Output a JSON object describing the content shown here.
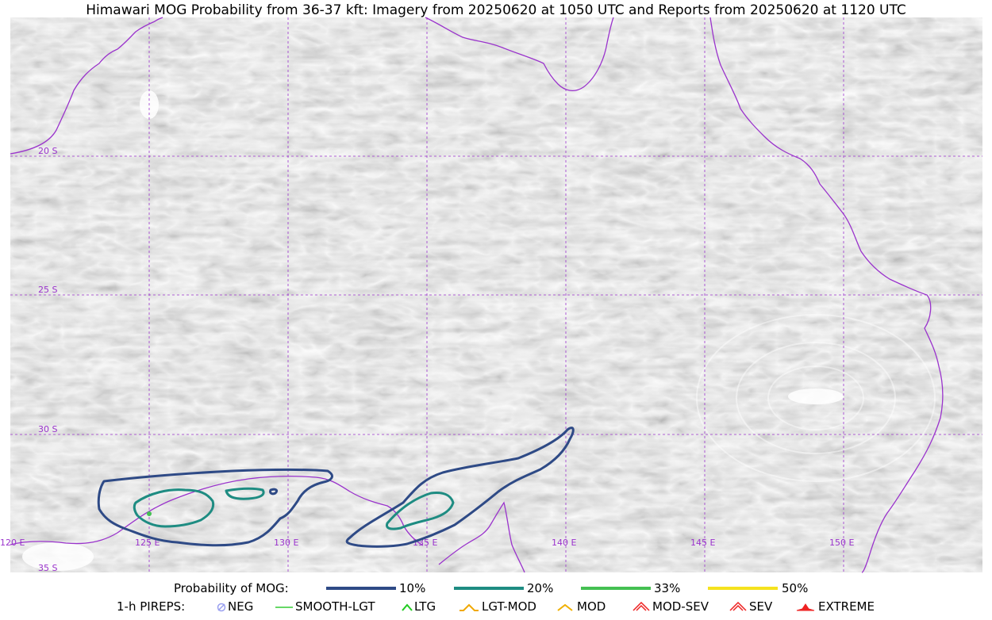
{
  "title": "Himawari MOG Probability from 36-37 kft: Imagery from 20250620 at 1050 UTC and Reports from 20250620 at 1120 UTC",
  "map": {
    "lat_labels": [
      "20 S",
      "25 S",
      "30 S",
      "35 S"
    ],
    "lon_labels": [
      "120 E",
      "125 E",
      "130 E",
      "135 E",
      "140 E",
      "145 E",
      "150 E"
    ],
    "colors": {
      "graticule": "#9a33cc",
      "coastline": "#9a33cc",
      "p10": "#2e4a86",
      "p20": "#1e8c82",
      "p33": "#44c052",
      "p50": "#f5e21e",
      "imagery": "#b4b4b4"
    }
  },
  "legend": {
    "probability_title": "Probability of MOG:",
    "probability_levels": [
      {
        "label": "10%",
        "color": "#2e4a86"
      },
      {
        "label": "20%",
        "color": "#1e8c82"
      },
      {
        "label": "33%",
        "color": "#44c052"
      },
      {
        "label": "50%",
        "color": "#f5e21e"
      }
    ],
    "pireps_title": "1-h PIREPS:",
    "pireps": [
      {
        "label": "NEG",
        "icon": "neg-circle-icon",
        "color": "#9aa0f0"
      },
      {
        "label": "SMOOTH-LGT",
        "icon": "line-icon",
        "color": "#33cc33"
      },
      {
        "label": "LTG",
        "icon": "caret-icon",
        "color": "#22cc22"
      },
      {
        "label": "LGT-MOD",
        "icon": "hat-icon",
        "color": "#f0a800"
      },
      {
        "label": "MOD",
        "icon": "caret-icon",
        "color": "#f0b000"
      },
      {
        "label": "MOD-SEV",
        "icon": "double-caret-icon",
        "color": "#ee2222"
      },
      {
        "label": "SEV",
        "icon": "double-caret-icon",
        "color": "#ee2222"
      },
      {
        "label": "EXTREME",
        "icon": "filled-hat-icon",
        "color": "#ee2222"
      }
    ]
  }
}
